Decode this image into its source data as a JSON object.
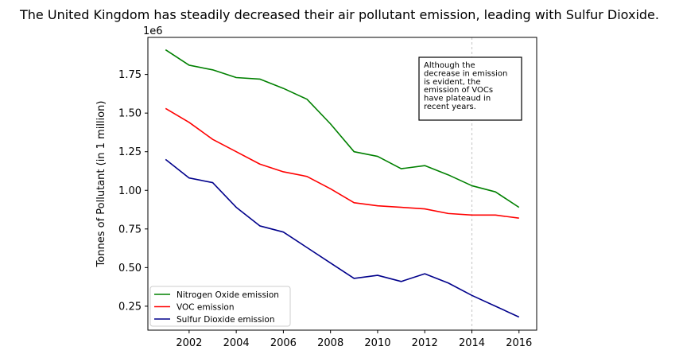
{
  "chart_data": {
    "type": "line",
    "title": "The United Kingdom has steadily decreased their air pollutant emission, leading with Sulfur Dioxide.",
    "xlabel": "",
    "ylabel": "Tonnes of Pollutant (in 1 million)",
    "y_offset_label": "1e6",
    "x": [
      2001,
      2002,
      2003,
      2004,
      2005,
      2006,
      2007,
      2008,
      2009,
      2010,
      2011,
      2012,
      2013,
      2014,
      2015,
      2016
    ],
    "xlim": [
      2000.25,
      2016.75
    ],
    "ylim": [
      0.095,
      1.99
    ],
    "x_ticks": [
      2002,
      2004,
      2006,
      2008,
      2010,
      2012,
      2014,
      2016
    ],
    "y_ticks": [
      0.25,
      0.5,
      0.75,
      1.0,
      1.25,
      1.5,
      1.75
    ],
    "y_tick_labels": [
      "0.25",
      "0.50",
      "0.75",
      "1.00",
      "1.25",
      "1.50",
      "1.75"
    ],
    "grid": false,
    "legend_position": "lower-left",
    "series": [
      {
        "name": "Nitrogen Oxide emission",
        "color": "#008000",
        "values": [
          1.91,
          1.81,
          1.78,
          1.73,
          1.72,
          1.66,
          1.59,
          1.43,
          1.25,
          1.22,
          1.14,
          1.16,
          1.1,
          1.03,
          0.99,
          0.89
        ]
      },
      {
        "name": "VOC emission",
        "color": "#ff0000",
        "values": [
          1.53,
          1.44,
          1.33,
          1.25,
          1.17,
          1.12,
          1.09,
          1.01,
          0.92,
          0.9,
          0.89,
          0.88,
          0.85,
          0.84,
          0.84,
          0.82
        ]
      },
      {
        "name": "Sulfur Dioxide emission",
        "color": "#00008b",
        "values": [
          1.2,
          1.08,
          1.05,
          0.89,
          0.77,
          0.73,
          0.63,
          0.53,
          0.43,
          0.45,
          0.41,
          0.46,
          0.4,
          0.32,
          0.25,
          0.18
        ]
      }
    ],
    "vline": {
      "x": 2014,
      "color": "#cccccc"
    },
    "annotation": {
      "lines": [
        "Although the",
        "decrease in emission",
        "is evident, the",
        "emission of VOCs",
        "have plateaud in",
        "recent years."
      ]
    }
  }
}
